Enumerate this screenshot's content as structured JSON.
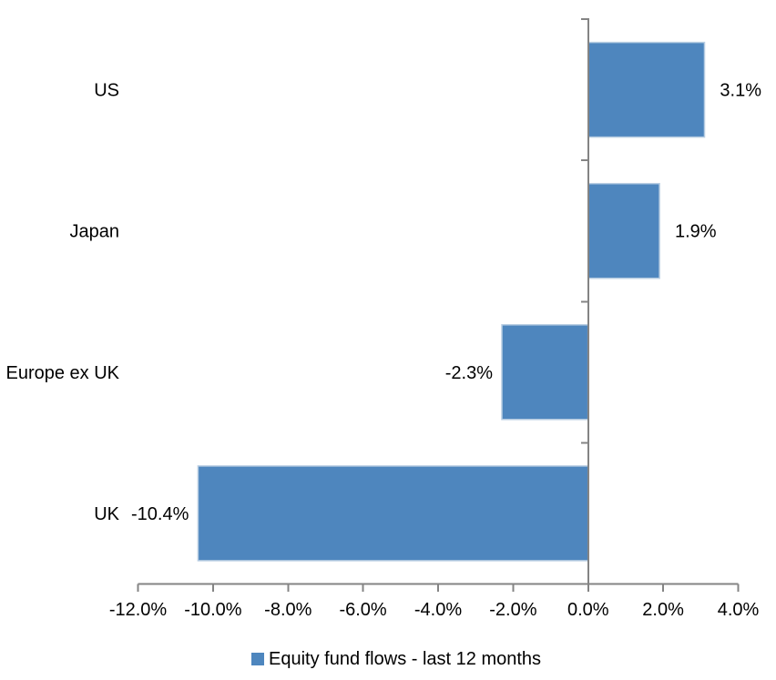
{
  "chart_data": {
    "type": "bar",
    "orientation": "horizontal",
    "title": "",
    "categories": [
      "US",
      "Japan",
      "Europe ex UK",
      "UK"
    ],
    "values": [
      3.1,
      1.9,
      -2.3,
      -10.4
    ],
    "data_labels": [
      "3.1%",
      "1.9%",
      "-2.3%",
      "-10.4%"
    ],
    "xlabel": "",
    "ylabel": "",
    "xlim": [
      -12,
      4
    ],
    "x_ticks": [
      -12,
      -10,
      -8,
      -6,
      -4,
      -2,
      0,
      2,
      4
    ],
    "x_tick_labels": [
      "-12.0%",
      "-10.0%",
      "-8.0%",
      "-6.0%",
      "-4.0%",
      "-2.0%",
      "0.0%",
      "2.0%",
      "4.0%"
    ],
    "grid": false,
    "legend_position": "bottom",
    "legend": [
      {
        "label": "Equity fund flows - last 12 months",
        "color": "#4E86BE"
      }
    ],
    "colors": {
      "bar_fill": "#4E86BE",
      "bar_border": "#B7CDE2",
      "axis": "#848484",
      "text": "#000000",
      "background": "#FFFFFF"
    }
  }
}
